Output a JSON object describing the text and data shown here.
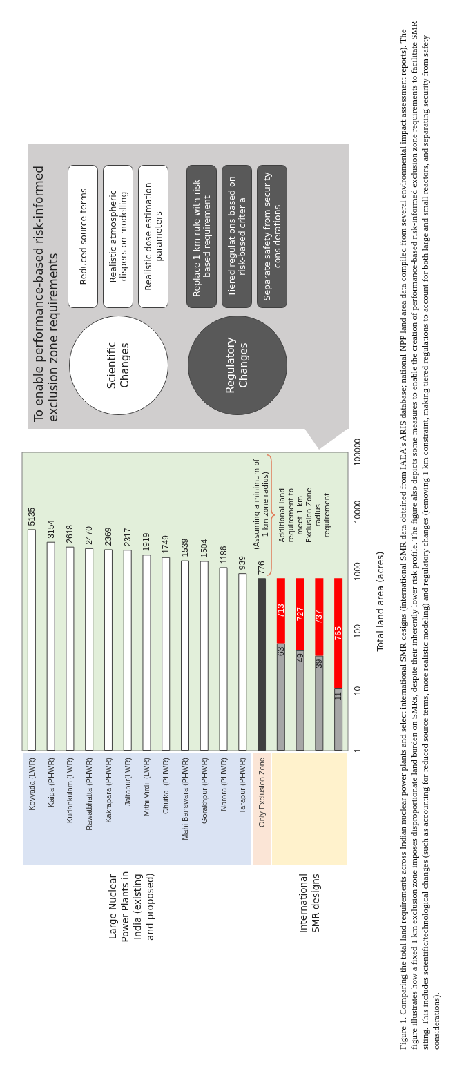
{
  "chart_data": [
    {
      "type": "bar",
      "stacked": true,
      "log": "y",
      "data_labels": true,
      "categories": [
        "Kovvada (LWR)",
        "Kaiga (PHWR)",
        "Kudankulam (LWR)",
        "Rawatbhatta (PHWR)",
        "Kakrapara (PHWR)",
        "Jaitapur(LWR)",
        "Mithi Virdi  (LWR)",
        "Chutka  (PHWR)",
        "Mahi Banswara (PHWR)",
        "Gorakhpur (PHWR)",
        "Narora (PHWR)",
        "Tarapur (PHWR)",
        "Only Exclusion Zone",
        null,
        null,
        null,
        null
      ],
      "series": [
        {
          "colors": [
            "#ffffff",
            "#ffffff",
            "#ffffff",
            "#ffffff",
            "#ffffff",
            "#ffffff",
            "#ffffff",
            "#ffffff",
            "#ffffff",
            "#ffffff",
            "#ffffff",
            "#ffffff",
            "#404040",
            "#a6a6a6",
            "#a6a6a6",
            "#a6a6a6",
            "#a6a6a6"
          ],
          "values": [
            5135,
            3154,
            2618,
            2470,
            2369,
            2317,
            1919,
            1749,
            1539,
            1504,
            1186,
            939,
            776,
            63,
            49,
            39,
            11
          ]
        },
        {
          "color": "#ff0000",
          "values": [
            null,
            null,
            null,
            null,
            null,
            null,
            null,
            null,
            null,
            null,
            null,
            null,
            null,
            713,
            727,
            737,
            765
          ]
        }
      ],
      "ylabel": "Total land area (acres)",
      "ylim": [
        1,
        100000
      ],
      "yticks": [
        1,
        10,
        100,
        1000,
        10000,
        100000
      ],
      "annotations": [
        {
          "text": "(Assuming a minimum of 1 km zone radius)",
          "x": "Only Exclusion Zone",
          "y": 776
        },
        "Additional land requirement to meet 1 km Exclusion Zone radius requirement",
        "Large Nuclear Power Plants in India (existing and proposed)",
        "International SMR designs",
        "Figure 1. Comparing the total land requirements across Indian nuclear power plants and select international SMR designs (international SMR data obtained from IAEA's ARIS database; national NPP land area data compiled from several environmental impact assessment reports). The figure illustrates how a fixed 1 km exclusion zone imposes disproportionate land burden on SMRs, despite their inherently lower risk profile. The figure also depicts some measures to enable the creation of performance-based risk-informed exclusion zone requirements to facilitate SMR siting. This includes scientific/technological changes (such as accounting for reduced source terms, more realistic modeling) and regulatory changes (removing 1 km constraint, making tiered regulations to account for both large and small reactors, and separating security from safety considerations)."
      ]
    },
    {
      "type": "other",
      "title": "To enable performance-based risk-informed exclusion zone requirements",
      "annotations": [
        "Scientific Changes",
        "Reduced source terms",
        "Realistic atmospheric dispersion modelling",
        "Realistic dose estimation parameters",
        "Regulatory Changes",
        "Replace 1 km rule with risk-based requirement",
        "Tiered regulations based on risk-based criteria",
        "Separate safety from security considerations"
      ]
    }
  ]
}
